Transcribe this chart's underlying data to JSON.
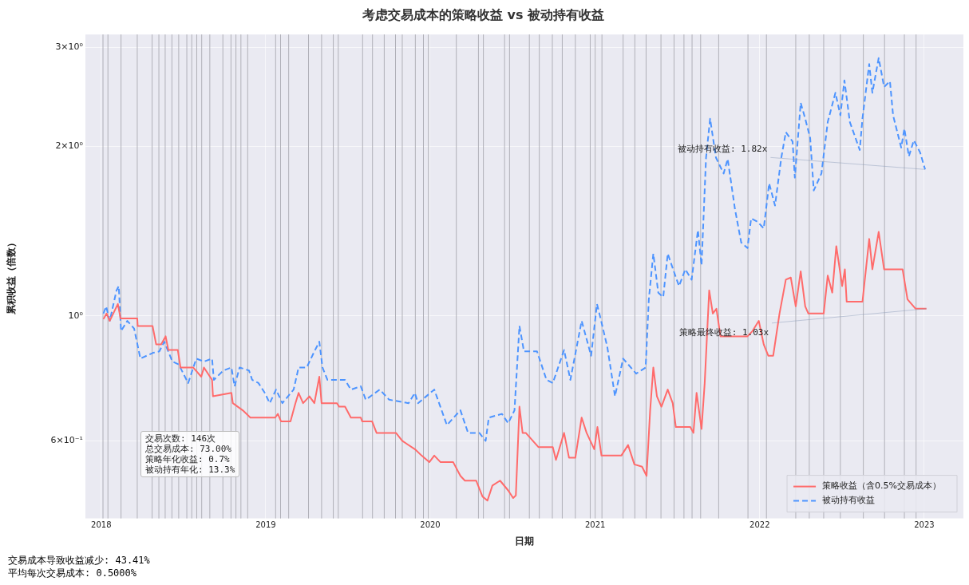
{
  "chart_data": {
    "type": "line",
    "title": "考虑交易成本的策略收益 vs 被动持有收益",
    "xlabel": "日期",
    "ylabel": "累积收益（倍数）",
    "log": "y",
    "grid": true,
    "legend": "bottom right",
    "marker": "none",
    "xlim": [
      "2017-11-27",
      "2023-03-29"
    ],
    "xticks": [
      "2018",
      "2019",
      "2020",
      "2021",
      "2022",
      "2023"
    ],
    "ylim": [
      0.437,
      3.16
    ],
    "yticks": [
      {
        "value": 0.6,
        "label": "6×10⁻¹"
      },
      {
        "value": 1,
        "label": "10⁰"
      },
      {
        "value": 2,
        "label": "2×10⁰"
      },
      {
        "value": 3,
        "label": "3×10⁰"
      }
    ],
    "series": [
      {
        "name": "策略收益（含0.5%交易成本）",
        "color": "#ff6b6b",
        "line_style": "solid",
        "x": [
          "2018-01-06",
          "2018-01-13",
          "2018-01-20",
          "2018-02-07",
          "2018-02-13",
          "2018-03-22",
          "2018-03-23",
          "2018-04-25",
          "2018-05-03",
          "2018-05-14",
          "2018-05-24",
          "2018-05-30",
          "2018-06-20",
          "2018-06-26",
          "2018-07-24",
          "2018-08-11",
          "2018-08-17",
          "2018-09-04",
          "2018-09-06",
          "2018-10-17",
          "2018-10-20",
          "2018-11-11",
          "2018-11-28",
          "2019-01-22",
          "2019-01-28",
          "2019-02-04",
          "2019-02-25",
          "2019-03-08",
          "2019-03-15",
          "2019-03-25",
          "2019-04-08",
          "2019-04-19",
          "2019-04-30",
          "2019-05-05",
          "2019-06-08",
          "2019-06-13",
          "2019-06-26",
          "2019-07-09",
          "2019-07-31",
          "2019-08-03",
          "2019-08-25",
          "2019-09-04",
          "2019-10-17",
          "2019-10-31",
          "2019-11-28",
          "2019-12-13",
          "2019-12-30",
          "2020-01-10",
          "2020-01-24",
          "2020-02-21",
          "2020-03-08",
          "2020-03-18",
          "2020-04-12",
          "2020-04-26",
          "2020-05-07",
          "2020-05-18",
          "2020-06-04",
          "2020-06-22",
          "2020-07-03",
          "2020-07-09",
          "2020-07-17",
          "2020-07-24",
          "2020-07-31",
          "2020-08-28",
          "2020-09-29",
          "2020-10-06",
          "2020-10-24",
          "2020-11-04",
          "2020-11-18",
          "2020-12-02",
          "2020-12-13",
          "2020-12-30",
          "2021-01-06",
          "2021-01-15",
          "2021-02-28",
          "2021-03-15",
          "2021-03-29",
          "2021-04-15",
          "2021-04-25",
          "2021-05-03",
          "2021-05-10",
          "2021-05-18",
          "2021-05-28",
          "2021-06-11",
          "2021-06-22",
          "2021-06-29",
          "2021-07-31",
          "2021-08-07",
          "2021-08-14",
          "2021-08-25",
          "2021-09-01",
          "2021-09-11",
          "2021-09-19",
          "2021-09-27",
          "2021-10-06",
          "2021-12-05",
          "2021-12-16",
          "2021-12-30",
          "2022-01-10",
          "2022-01-20",
          "2022-01-31",
          "2022-02-14",
          "2022-02-28",
          "2022-03-11",
          "2022-03-22",
          "2022-04-02",
          "2022-04-12",
          "2022-04-19",
          "2022-05-23",
          "2022-06-01",
          "2022-06-11",
          "2022-06-20",
          "2022-07-03",
          "2022-07-09",
          "2022-07-13",
          "2022-08-17",
          "2022-09-01",
          "2022-09-08",
          "2022-09-22",
          "2022-10-04",
          "2022-11-14",
          "2022-11-25",
          "2022-12-13",
          "2023-01-06"
        ],
        "values": [
          0.987,
          1.01,
          0.98,
          1.05,
          0.99,
          0.99,
          0.96,
          0.96,
          0.89,
          0.89,
          0.92,
          0.87,
          0.87,
          0.81,
          0.81,
          0.78,
          0.81,
          0.77,
          0.72,
          0.73,
          0.7,
          0.68,
          0.66,
          0.66,
          0.67,
          0.65,
          0.65,
          0.7,
          0.73,
          0.7,
          0.72,
          0.7,
          0.78,
          0.7,
          0.7,
          0.69,
          0.69,
          0.66,
          0.66,
          0.65,
          0.65,
          0.62,
          0.62,
          0.6,
          0.58,
          0.565,
          0.55,
          0.565,
          0.55,
          0.55,
          0.52,
          0.51,
          0.51,
          0.478,
          0.47,
          0.5,
          0.51,
          0.49,
          0.475,
          0.48,
          0.69,
          0.62,
          0.62,
          0.585,
          0.585,
          0.555,
          0.62,
          0.56,
          0.56,
          0.66,
          0.62,
          0.58,
          0.635,
          0.565,
          0.565,
          0.59,
          0.545,
          0.54,
          0.52,
          0.68,
          0.81,
          0.72,
          0.69,
          0.74,
          0.7,
          0.635,
          0.635,
          0.62,
          0.73,
          0.63,
          0.76,
          1.11,
          1.01,
          1.03,
          0.92,
          0.92,
          0.94,
          0.98,
          0.89,
          0.85,
          0.85,
          1.01,
          1.16,
          1.17,
          1.04,
          1.2,
          1.04,
          1.01,
          1.01,
          1.18,
          1.1,
          1.33,
          1.13,
          1.21,
          1.06,
          1.06,
          1.37,
          1.21,
          1.41,
          1.21,
          1.21,
          1.07,
          1.03,
          1.03
        ]
      },
      {
        "name": "被动持有收益",
        "color": "#4d94ff",
        "line_style": "dashed",
        "x": [
          "2018-01-06",
          "2018-01-12",
          "2018-01-20",
          "2018-02-04",
          "2018-02-09",
          "2018-02-14",
          "2018-02-28",
          "2018-03-15",
          "2018-03-29",
          "2018-04-26",
          "2018-05-10",
          "2018-05-21",
          "2018-06-08",
          "2018-06-22",
          "2018-07-13",
          "2018-07-31",
          "2018-08-17",
          "2018-09-04",
          "2018-09-08",
          "2018-09-29",
          "2018-10-17",
          "2018-10-24",
          "2018-11-04",
          "2018-11-25",
          "2018-12-02",
          "2018-12-16",
          "2018-12-30",
          "2019-01-10",
          "2019-01-24",
          "2019-02-07",
          "2019-03-04",
          "2019-03-15",
          "2019-04-02",
          "2019-04-19",
          "2019-04-30",
          "2019-05-07",
          "2019-05-18",
          "2019-06-11",
          "2019-06-26",
          "2019-07-09",
          "2019-07-31",
          "2019-08-11",
          "2019-09-11",
          "2019-10-02",
          "2019-11-14",
          "2019-11-28",
          "2019-12-05",
          "2020-01-10",
          "2020-02-07",
          "2020-03-08",
          "2020-03-25",
          "2020-04-19",
          "2020-05-03",
          "2020-05-10",
          "2020-06-08",
          "2020-06-22",
          "2020-07-06",
          "2020-07-17",
          "2020-07-27",
          "2020-08-25",
          "2020-09-15",
          "2020-09-29",
          "2020-10-24",
          "2020-11-07",
          "2020-12-02",
          "2020-12-23",
          "2021-01-05",
          "2021-01-13",
          "2021-01-28",
          "2021-02-14",
          "2021-03-04",
          "2021-04-02",
          "2021-04-23",
          "2021-04-30",
          "2021-05-10",
          "2021-05-21",
          "2021-06-01",
          "2021-06-11",
          "2021-06-26",
          "2021-07-06",
          "2021-07-20",
          "2021-08-03",
          "2021-08-17",
          "2021-08-25",
          "2021-09-04",
          "2021-09-13",
          "2021-09-26",
          "2021-10-13",
          "2021-10-22",
          "2021-11-07",
          "2021-11-21",
          "2021-12-05",
          "2021-12-13",
          "2021-12-27",
          "2022-01-10",
          "2022-01-22",
          "2022-02-04",
          "2022-02-18",
          "2022-02-28",
          "2022-03-15",
          "2022-03-20",
          "2022-04-02",
          "2022-04-12",
          "2022-04-23",
          "2022-05-01",
          "2022-05-18",
          "2022-06-01",
          "2022-06-18",
          "2022-06-29",
          "2022-07-08",
          "2022-07-20",
          "2022-08-11",
          "2022-08-17",
          "2022-09-01",
          "2022-09-08",
          "2022-09-22",
          "2022-10-04",
          "2022-10-17",
          "2022-10-24",
          "2022-11-11",
          "2022-11-18",
          "2022-11-28",
          "2022-12-09",
          "2022-12-23",
          "2023-01-03"
        ],
        "values": [
          1.01,
          1.04,
          0.98,
          1.11,
          1.13,
          0.94,
          0.98,
          0.95,
          0.84,
          0.86,
          0.865,
          0.9,
          0.83,
          0.82,
          0.76,
          0.84,
          0.83,
          0.84,
          0.77,
          0.8,
          0.81,
          0.75,
          0.81,
          0.8,
          0.77,
          0.76,
          0.73,
          0.7,
          0.74,
          0.7,
          0.74,
          0.81,
          0.81,
          0.865,
          0.9,
          0.81,
          0.77,
          0.77,
          0.77,
          0.74,
          0.75,
          0.71,
          0.74,
          0.71,
          0.7,
          0.73,
          0.7,
          0.74,
          0.64,
          0.68,
          0.62,
          0.62,
          0.6,
          0.66,
          0.67,
          0.645,
          0.68,
          0.96,
          0.865,
          0.865,
          0.77,
          0.76,
          0.87,
          0.77,
          0.98,
          0.85,
          1.05,
          0.99,
          0.88,
          0.72,
          0.84,
          0.79,
          0.81,
          1.07,
          1.29,
          1.1,
          1.08,
          1.29,
          1.19,
          1.13,
          1.21,
          1.16,
          1.42,
          1.23,
          1.91,
          2.24,
          1.91,
          1.79,
          1.9,
          1.55,
          1.35,
          1.32,
          1.49,
          1.47,
          1.43,
          1.72,
          1.57,
          1.91,
          2.12,
          2.04,
          1.76,
          2.39,
          2.24,
          2.07,
          1.67,
          1.79,
          2.21,
          2.49,
          2.27,
          2.62,
          2.21,
          1.97,
          2.24,
          2.8,
          2.49,
          2.87,
          2.55,
          2.61,
          2.27,
          1.99,
          2.15,
          1.92,
          2.05,
          1.95,
          1.82
        ]
      }
    ],
    "ref_lines": [
      {
        "axis": "x",
        "value": "2018-01-05",
        "color": "#b0b0b8"
      },
      {
        "axis": "x",
        "value": "2018-01-16",
        "color": "#b0b0b8"
      },
      {
        "axis": "x",
        "value": "2018-02-14",
        "color": "#b0b0b8"
      },
      {
        "axis": "x",
        "value": "2018-03-22",
        "color": "#b0b0b8"
      },
      {
        "axis": "x",
        "value": "2018-04-24",
        "color": "#b0b0b8"
      },
      {
        "axis": "x",
        "value": "2018-05-09",
        "color": "#b0b0b8"
      },
      {
        "axis": "x",
        "value": "2018-05-23",
        "color": "#b0b0b8"
      },
      {
        "axis": "x",
        "value": "2018-06-07",
        "color": "#b0b0b8"
      },
      {
        "axis": "x",
        "value": "2018-06-22",
        "color": "#b0b0b8"
      },
      {
        "axis": "x",
        "value": "2018-07-10",
        "color": "#b0b0b8"
      },
      {
        "axis": "x",
        "value": "2018-07-21",
        "color": "#b0b0b8"
      },
      {
        "axis": "x",
        "value": "2018-08-01",
        "color": "#b0b0b8"
      },
      {
        "axis": "x",
        "value": "2018-08-12",
        "color": "#b0b0b8"
      },
      {
        "axis": "x",
        "value": "2018-08-30",
        "color": "#b0b0b8"
      },
      {
        "axis": "x",
        "value": "2018-09-28",
        "color": "#b0b0b8"
      },
      {
        "axis": "x",
        "value": "2018-10-16",
        "color": "#b0b0b8"
      },
      {
        "axis": "x",
        "value": "2018-10-27",
        "color": "#b0b0b8"
      },
      {
        "axis": "x",
        "value": "2018-11-07",
        "color": "#b0b0b8"
      },
      {
        "axis": "x",
        "value": "2018-11-22",
        "color": "#b0b0b8"
      },
      {
        "axis": "x",
        "value": "2019-01-23",
        "color": "#b0b0b8"
      },
      {
        "axis": "x",
        "value": "2019-02-03",
        "color": "#b0b0b8"
      },
      {
        "axis": "x",
        "value": "2019-02-21",
        "color": "#b0b0b8"
      },
      {
        "axis": "x",
        "value": "2019-04-06",
        "color": "#b0b0b8"
      },
      {
        "axis": "x",
        "value": "2019-05-05",
        "color": "#b0b0b8"
      },
      {
        "axis": "x",
        "value": "2019-05-31",
        "color": "#b0b0b8"
      },
      {
        "axis": "x",
        "value": "2019-06-11",
        "color": "#b0b0b8"
      },
      {
        "axis": "x",
        "value": "2019-08-04",
        "color": "#b0b0b8"
      },
      {
        "axis": "x",
        "value": "2019-08-26",
        "color": "#b0b0b8"
      },
      {
        "axis": "x",
        "value": "2019-09-21",
        "color": "#b0b0b8"
      },
      {
        "axis": "x",
        "value": "2019-10-16",
        "color": "#b0b0b8"
      },
      {
        "axis": "x",
        "value": "2019-10-31",
        "color": "#b0b0b8"
      },
      {
        "axis": "x",
        "value": "2019-11-29",
        "color": "#b0b0b8"
      },
      {
        "axis": "x",
        "value": "2019-12-17",
        "color": "#b0b0b8"
      },
      {
        "axis": "x",
        "value": "2019-12-28",
        "color": "#b0b0b8"
      },
      {
        "axis": "x",
        "value": "2020-02-28",
        "color": "#b0b0b8"
      },
      {
        "axis": "x",
        "value": "2020-04-17",
        "color": "#b0b0b8"
      },
      {
        "axis": "x",
        "value": "2020-04-28",
        "color": "#b0b0b8"
      },
      {
        "axis": "x",
        "value": "2020-06-14",
        "color": "#b0b0b8"
      },
      {
        "axis": "x",
        "value": "2020-06-25",
        "color": "#b0b0b8"
      },
      {
        "axis": "x",
        "value": "2020-08-08",
        "color": "#b0b0b8"
      },
      {
        "axis": "x",
        "value": "2020-08-30",
        "color": "#b0b0b8"
      },
      {
        "axis": "x",
        "value": "2020-09-28",
        "color": "#b0b0b8"
      },
      {
        "axis": "x",
        "value": "2020-10-20",
        "color": "#b0b0b8"
      },
      {
        "axis": "x",
        "value": "2020-11-18",
        "color": "#b0b0b8"
      },
      {
        "axis": "x",
        "value": "2020-12-21",
        "color": "#b0b0b8"
      },
      {
        "axis": "x",
        "value": "2021-01-01",
        "color": "#b0b0b8"
      },
      {
        "axis": "x",
        "value": "2021-01-16",
        "color": "#b0b0b8"
      },
      {
        "axis": "x",
        "value": "2021-03-04",
        "color": "#b0b0b8"
      },
      {
        "axis": "x",
        "value": "2021-03-30",
        "color": "#b0b0b8"
      },
      {
        "axis": "x",
        "value": "2021-04-24",
        "color": "#b0b0b8"
      },
      {
        "axis": "x",
        "value": "2021-05-27",
        "color": "#b0b0b8"
      },
      {
        "axis": "x",
        "value": "2021-06-25",
        "color": "#b0b0b8"
      },
      {
        "axis": "x",
        "value": "2021-07-17",
        "color": "#b0b0b8"
      },
      {
        "axis": "x",
        "value": "2021-08-04",
        "color": "#b0b0b8"
      },
      {
        "axis": "x",
        "value": "2021-08-23",
        "color": "#b0b0b8"
      },
      {
        "axis": "x",
        "value": "2021-10-02",
        "color": "#b0b0b8"
      },
      {
        "axis": "x",
        "value": "2021-12-06",
        "color": "#b0b0b8"
      },
      {
        "axis": "x",
        "value": "2022-01-16",
        "color": "#b0b0b8"
      },
      {
        "axis": "x",
        "value": "2022-03-22",
        "color": "#b0b0b8"
      },
      {
        "axis": "x",
        "value": "2022-04-21",
        "color": "#b0b0b8"
      },
      {
        "axis": "x",
        "value": "2022-05-23",
        "color": "#b0b0b8"
      },
      {
        "axis": "x",
        "value": "2022-06-29",
        "color": "#b0b0b8"
      },
      {
        "axis": "x",
        "value": "2022-08-19",
        "color": "#b0b0b8"
      },
      {
        "axis": "x",
        "value": "2022-10-05",
        "color": "#b0b0b8"
      },
      {
        "axis": "x",
        "value": "2022-11-18",
        "color": "#b0b0b8"
      },
      {
        "axis": "x",
        "value": "2022-12-14",
        "color": "#b0b0b8"
      }
    ],
    "annotations": [
      {
        "text": "被动持有收益: 1.82x",
        "x": "2023-01-03",
        "y": 1.82
      },
      {
        "text": "策略最终收益: 1.03x",
        "x": "2023-01-06",
        "y": 1.03
      },
      "交易次数: 146次",
      "总交易成本: 73.00%",
      "策略年化收益: 0.7%",
      "被动持有年化: 13.3%",
      "交易成本导致收益减少: 43.41%",
      "平均每次交易成本: 0.5000%"
    ]
  }
}
